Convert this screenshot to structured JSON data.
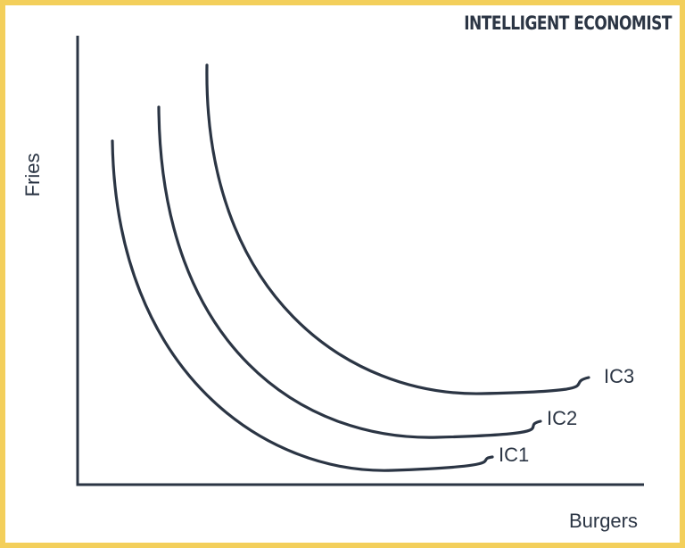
{
  "brand": "INTELLIGENT ECONOMIST",
  "axes": {
    "y_label": "Fries",
    "x_label": "Burgers"
  },
  "curves": [
    {
      "label": "IC1"
    },
    {
      "label": "IC2"
    },
    {
      "label": "IC3"
    }
  ]
}
